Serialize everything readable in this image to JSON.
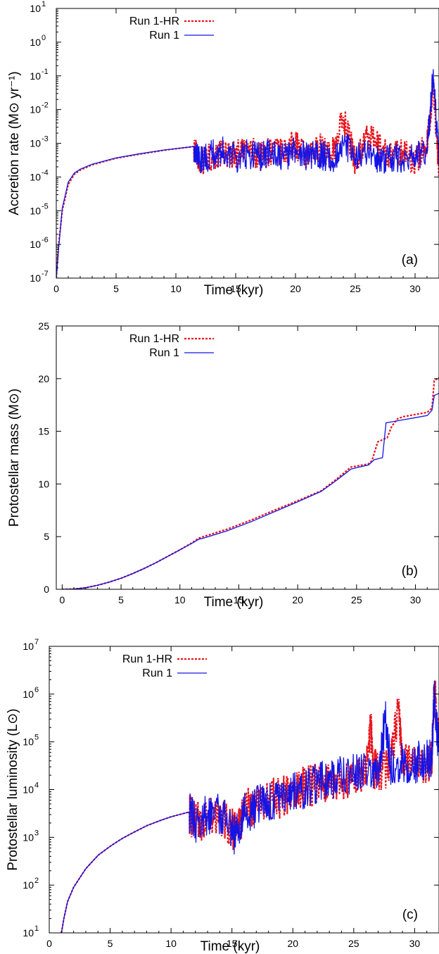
{
  "chart_data": [
    {
      "type": "line",
      "panel_label": "(a)",
      "xlabel": "Time (kyr)",
      "ylabel": "Accretion rate (M⊙ yr⁻¹)",
      "xlim": [
        0,
        32
      ],
      "ylim": [
        1e-07,
        10
      ],
      "yscale": "log",
      "grid": false,
      "legend": "top-left",
      "x_ticks": [
        0,
        5,
        10,
        15,
        20,
        25,
        30
      ],
      "y_ticks": [
        {
          "base": "10",
          "exp": "-7"
        },
        {
          "base": "10",
          "exp": "-6"
        },
        {
          "base": "10",
          "exp": "-5"
        },
        {
          "base": "10",
          "exp": "-4"
        },
        {
          "base": "10",
          "exp": "-3"
        },
        {
          "base": "10",
          "exp": "-2"
        },
        {
          "base": "10",
          "exp": "-1"
        },
        {
          "base": "10",
          "exp": "0"
        },
        {
          "base": "10",
          "exp": "1"
        }
      ],
      "series": [
        {
          "name": "Run 1-HR",
          "color": "#e8141c",
          "style": "dashed",
          "x": [
            0,
            0.2,
            0.5,
            1.0,
            1.5,
            2,
            3,
            5,
            7,
            9,
            11.5,
            12,
            13,
            14,
            15,
            16,
            17,
            18,
            19,
            20,
            21,
            22,
            23,
            24,
            25,
            26,
            27,
            28,
            29,
            30,
            31,
            31.5,
            32
          ],
          "y": [
            1e-07,
            1e-06,
            1e-05,
            6e-05,
            0.00012,
            0.00016,
            0.00023,
            0.00036,
            0.00048,
            0.00062,
            0.0008,
            0.0003,
            0.0004,
            0.0005,
            0.00045,
            0.0007,
            0.0004,
            0.0006,
            0.0005,
            0.001,
            0.0003,
            0.0008,
            0.0004,
            0.006,
            0.0003,
            0.0015,
            0.0008,
            0.0004,
            0.0006,
            0.0003,
            0.001,
            0.05,
            0.0002
          ]
        },
        {
          "name": "Run 1",
          "color": "#1414e6",
          "style": "solid",
          "x": [
            0,
            0.2,
            0.5,
            1.0,
            1.5,
            2,
            3,
            5,
            7,
            9,
            11.5,
            12,
            13,
            14,
            15,
            16,
            17,
            18,
            19,
            20,
            21,
            22,
            23,
            24,
            25,
            26,
            27,
            28,
            29,
            30,
            31,
            31.5,
            32
          ],
          "y": [
            1e-07,
            8e-07,
            1.2e-05,
            7e-05,
            0.00013,
            0.00017,
            0.00024,
            0.00037,
            0.00049,
            0.00063,
            0.0008,
            0.0003,
            0.00045,
            0.0006,
            0.00035,
            0.0005,
            0.0004,
            0.00055,
            0.00035,
            0.0006,
            0.0004,
            0.0005,
            0.0003,
            0.001,
            0.00035,
            0.0005,
            0.0003,
            0.0004,
            0.00035,
            0.0004,
            0.0005,
            0.1,
            0.0003
          ]
        }
      ]
    },
    {
      "type": "line",
      "panel_label": "(b)",
      "xlabel": "Time (kyr)",
      "ylabel": "Protostellar mass (M⊙)",
      "xlim": [
        -0.5,
        32
      ],
      "ylim": [
        0,
        25
      ],
      "yscale": "linear",
      "grid": false,
      "legend": "top-left",
      "x_ticks": [
        0,
        5,
        10,
        15,
        20,
        25,
        30
      ],
      "y_ticks": [
        {
          "base": "0"
        },
        {
          "base": "5"
        },
        {
          "base": "10"
        },
        {
          "base": "15"
        },
        {
          "base": "20"
        },
        {
          "base": "25"
        }
      ],
      "series": [
        {
          "name": "Run 1-HR",
          "color": "#e8141c",
          "style": "dashed",
          "x": [
            0,
            1,
            2,
            3,
            4,
            5,
            6,
            7,
            8,
            9,
            10,
            11,
            11.6,
            12,
            14,
            16,
            18,
            20,
            22,
            23,
            24,
            24.5,
            25,
            26,
            26.3,
            26.8,
            27.6,
            28,
            28.5,
            29,
            30,
            31,
            31.4,
            31.6,
            32
          ],
          "y": [
            0,
            0.03,
            0.15,
            0.38,
            0.68,
            1.05,
            1.5,
            2.0,
            2.55,
            3.15,
            3.75,
            4.4,
            4.85,
            5.0,
            5.7,
            6.55,
            7.5,
            8.4,
            9.35,
            10.2,
            11.1,
            11.6,
            11.7,
            11.9,
            12.2,
            14.0,
            14.4,
            15.5,
            16.2,
            16.4,
            16.6,
            16.8,
            17.2,
            19.8,
            20.1
          ]
        },
        {
          "name": "Run 1",
          "color": "#1414e6",
          "style": "solid",
          "x": [
            0,
            1,
            2,
            3,
            4,
            5,
            6,
            7,
            8,
            9,
            10,
            11,
            11.6,
            12,
            14,
            16,
            18,
            20,
            22,
            23,
            24,
            24.5,
            25,
            26,
            26.5,
            27.2,
            27.5,
            28,
            28.5,
            29,
            30,
            31,
            31.4,
            31.6,
            32
          ],
          "y": [
            0,
            0.03,
            0.15,
            0.38,
            0.68,
            1.05,
            1.5,
            2.0,
            2.55,
            3.15,
            3.75,
            4.35,
            4.75,
            4.85,
            5.55,
            6.4,
            7.35,
            8.3,
            9.3,
            10.1,
            10.95,
            11.4,
            11.55,
            11.8,
            12.3,
            12.5,
            15.8,
            15.9,
            16.0,
            16.1,
            16.3,
            16.5,
            17.0,
            18.4,
            18.6
          ]
        }
      ]
    },
    {
      "type": "line",
      "panel_label": "(c)",
      "xlabel": "Time (kyr)",
      "ylabel": "Protostellar luminosity (L⊙)",
      "xlim": [
        0,
        32
      ],
      "ylim": [
        10,
        10000000.0
      ],
      "yscale": "log",
      "grid": false,
      "legend": "top-left",
      "x_ticks": [
        0,
        5,
        10,
        15,
        20,
        25,
        30
      ],
      "y_ticks": [
        {
          "base": "10",
          "exp": "1"
        },
        {
          "base": "10",
          "exp": "2"
        },
        {
          "base": "10",
          "exp": "3"
        },
        {
          "base": "10",
          "exp": "4"
        },
        {
          "base": "10",
          "exp": "5"
        },
        {
          "base": "10",
          "exp": "6"
        },
        {
          "base": "10",
          "exp": "7"
        }
      ],
      "series": [
        {
          "name": "Run 1-HR",
          "color": "#e8141c",
          "style": "dashed",
          "x": [
            1.0,
            1.2,
            1.5,
            2,
            3,
            4,
            5,
            6,
            7,
            8,
            9,
            10,
            11.5,
            12,
            13,
            14,
            15,
            15.3,
            16,
            17,
            18,
            19,
            20,
            21,
            22,
            23,
            24,
            25,
            26,
            26.4,
            26.6,
            27,
            28,
            28.7,
            29,
            30,
            31,
            31.4,
            31.6,
            32
          ],
          "y": [
            10,
            20,
            45,
            90,
            220,
            420,
            650,
            950,
            1300,
            1750,
            2200,
            2700,
            3400,
            2000,
            2500,
            3000,
            1500,
            1200,
            3500,
            5000,
            6000,
            7000,
            9000,
            11000,
            13000,
            14000,
            16000,
            18000,
            22000,
            200000,
            25000,
            26000,
            30000,
            500000,
            32000,
            34000,
            38000,
            42000,
            1600000,
            70000
          ]
        },
        {
          "name": "Run 1",
          "color": "#1414e6",
          "style": "solid",
          "x": [
            1.0,
            1.2,
            1.5,
            2,
            3,
            4,
            5,
            6,
            7,
            8,
            9,
            10,
            11.5,
            12,
            13,
            14,
            15,
            15.3,
            16,
            17,
            18,
            19,
            20,
            21,
            22,
            23,
            24,
            25,
            26,
            27,
            27.6,
            28,
            29,
            30,
            31,
            31.4,
            31.6,
            32
          ],
          "y": [
            10,
            20,
            45,
            90,
            220,
            420,
            650,
            950,
            1300,
            1750,
            2200,
            2700,
            3400,
            2000,
            2800,
            3200,
            1400,
            1100,
            3000,
            4500,
            6000,
            7500,
            9000,
            11000,
            13000,
            15000,
            20000,
            21000,
            24000,
            28000,
            300000,
            32000,
            35000,
            37000,
            40000,
            45000,
            900000,
            60000
          ]
        }
      ]
    }
  ]
}
